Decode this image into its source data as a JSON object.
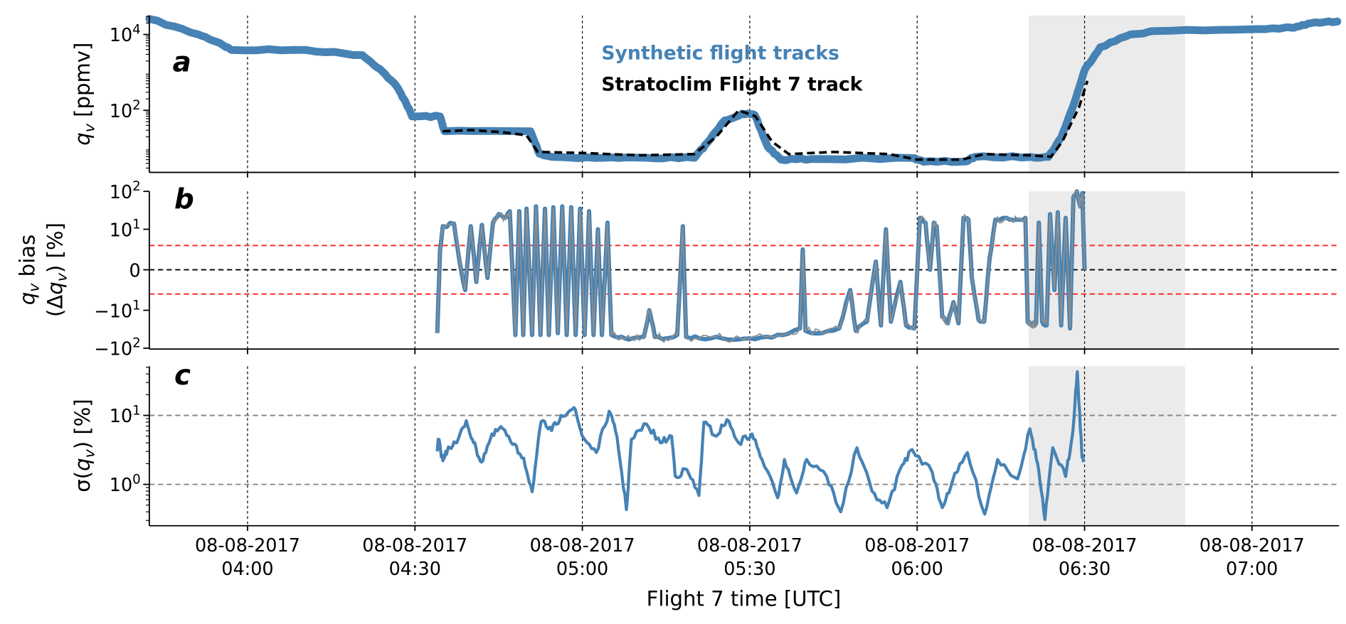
{
  "colors": {
    "synthetic": "#4682b4",
    "synthetic_spread": "#8f8f8f",
    "observed": "#000000",
    "threshold": "#ff2a2a",
    "shade": "#ebebeb",
    "grid": "#888888"
  },
  "chart_data": [
    {
      "panel": "a",
      "type": "line",
      "x_unit": "minutes since 00:00 UTC",
      "xlim": [
        222.4,
        435.6
      ],
      "yscale": "log",
      "ylim": [
        2.3,
        31000
      ],
      "ylabel": {
        "sym": "q",
        "sub": "v",
        "rest": " [ppmv]"
      },
      "yticks": [
        {
          "value": 10000,
          "base": "10",
          "exp": "4"
        },
        {
          "value": 100,
          "base": "10",
          "exp": "2"
        }
      ],
      "shaded_interval": [
        380,
        408
      ],
      "legend": {
        "placement": "top-center",
        "entries": [
          "Synthetic flight tracks",
          "Stratoclim Flight 7 track"
        ]
      },
      "series": [
        {
          "name": "Synthetic flight tracks",
          "style": "thick-solid",
          "points": [
            [
              222.4,
              25700
            ],
            [
              231.2,
              10000
            ],
            [
              235.1,
              5900
            ],
            [
              237.1,
              3900
            ],
            [
              250.5,
              3900
            ],
            [
              260.6,
              2850
            ],
            [
              263.7,
              1230
            ],
            [
              266.7,
              435
            ],
            [
              268.3,
              170
            ],
            [
              269.5,
              69
            ],
            [
              274.5,
              69
            ],
            [
              275.3,
              28
            ],
            [
              290.7,
              28
            ],
            [
              292.3,
              7.2
            ],
            [
              294.6,
              5.9
            ],
            [
              303.9,
              5.6
            ],
            [
              311.6,
              5.6
            ],
            [
              320.1,
              5.6
            ],
            [
              322.4,
              14
            ],
            [
              325.5,
              54
            ],
            [
              328.6,
              81
            ],
            [
              330.9,
              75
            ],
            [
              333.2,
              11
            ],
            [
              335.6,
              5
            ],
            [
              341,
              5.2
            ],
            [
              359.5,
              5.5
            ],
            [
              361.1,
              4.4
            ],
            [
              368.8,
              4.5
            ],
            [
              370.3,
              5.9
            ],
            [
              380.4,
              5.9
            ],
            [
              383.5,
              5.9
            ],
            [
              385.8,
              19
            ],
            [
              388.1,
              150
            ],
            [
              390.1,
              1230
            ],
            [
              392.8,
              4600
            ],
            [
              398.2,
              10000
            ],
            [
              402.8,
              12300
            ],
            [
              419.8,
              13700
            ],
            [
              427.5,
              15000
            ],
            [
              430.6,
              20000
            ],
            [
              435.3,
              22000
            ]
          ]
        },
        {
          "name": "Stratoclim Flight 7 track",
          "style": "dashed",
          "points": [
            [
              275,
              28
            ],
            [
              280,
              30
            ],
            [
              285,
              27
            ],
            [
              290,
              22
            ],
            [
              292,
              8
            ],
            [
              300,
              7.5
            ],
            [
              310,
              6.5
            ],
            [
              320,
              7
            ],
            [
              324,
              20
            ],
            [
              328,
              100
            ],
            [
              331,
              70
            ],
            [
              334,
              15
            ],
            [
              337,
              7
            ],
            [
              345,
              8
            ],
            [
              355,
              7
            ],
            [
              360,
              5
            ],
            [
              368,
              5
            ],
            [
              372,
              7
            ],
            [
              380,
              6.5
            ],
            [
              384,
              6
            ],
            [
              386,
              15
            ],
            [
              389,
              120
            ],
            [
              390.5,
              600
            ]
          ]
        }
      ]
    },
    {
      "panel": "b",
      "type": "line",
      "xlim": [
        222.4,
        435.6
      ],
      "yscale": "symlog",
      "ylim": [
        -100,
        100
      ],
      "ylabel": {
        "line1_sym": "q",
        "line1_sub": "v",
        "line1_rest": " bias",
        "line2_pre": "(Δ",
        "line2_sym": "q",
        "line2_sub": "v",
        "line2_rest": ") [%]"
      },
      "yticks": [
        {
          "value": 100,
          "base": "10",
          "exp": "2"
        },
        {
          "value": 10,
          "base": "10",
          "exp": "1"
        },
        {
          "value": 0,
          "base": "0",
          "exp": ""
        },
        {
          "value": -10,
          "base": "−10",
          "exp": "1"
        },
        {
          "value": -100,
          "base": "−10",
          "exp": "2"
        }
      ],
      "hlines": [
        {
          "value": 0,
          "color": "black"
        },
        {
          "value": 6,
          "color": "red"
        },
        {
          "value": -6,
          "color": "red"
        }
      ],
      "shaded_interval": [
        380,
        408
      ],
      "series": [
        {
          "name": "Synthetic flight tracks bias",
          "points": [
            [
              274,
              -40
            ],
            [
              274.5,
              5
            ],
            [
              275,
              12
            ],
            [
              277,
              14
            ],
            [
              278,
              2
            ],
            [
              279,
              -5
            ],
            [
              280,
              12
            ],
            [
              281,
              -3
            ],
            [
              282,
              13
            ],
            [
              283,
              -2
            ],
            [
              284,
              15
            ],
            [
              285,
              25
            ],
            [
              286,
              20
            ],
            [
              287,
              30
            ],
            [
              288,
              -45
            ],
            [
              288.7,
              30
            ],
            [
              289.4,
              -45
            ],
            [
              290,
              35
            ],
            [
              291,
              -45
            ],
            [
              291.7,
              40
            ],
            [
              292.5,
              -45
            ],
            [
              293.3,
              35
            ],
            [
              294,
              -45
            ],
            [
              294.8,
              38
            ],
            [
              295.6,
              -40
            ],
            [
              296.4,
              40
            ],
            [
              297.2,
              -45
            ],
            [
              298,
              38
            ],
            [
              298.8,
              -45
            ],
            [
              299.6,
              35
            ],
            [
              300.4,
              -45
            ],
            [
              301.2,
              30
            ],
            [
              302,
              -45
            ],
            [
              302.8,
              10
            ],
            [
              303.5,
              -45
            ],
            [
              304.5,
              15
            ],
            [
              305.2,
              -45
            ],
            [
              307,
              -50
            ],
            [
              309,
              -55
            ],
            [
              311,
              -50
            ],
            [
              312,
              -10
            ],
            [
              313,
              -50
            ],
            [
              315,
              -55
            ],
            [
              317,
              -45
            ],
            [
              318,
              12
            ],
            [
              318.6,
              -50
            ],
            [
              321,
              -55
            ],
            [
              324,
              -50
            ],
            [
              327,
              -60
            ],
            [
              330,
              -55
            ],
            [
              333,
              -50
            ],
            [
              336,
              -45
            ],
            [
              339,
              -30
            ],
            [
              339.5,
              5
            ],
            [
              340,
              -35
            ],
            [
              343,
              -40
            ],
            [
              346,
              -30
            ],
            [
              348,
              -5
            ],
            [
              349,
              -35
            ],
            [
              351,
              -20
            ],
            [
              352.6,
              2
            ],
            [
              353.5,
              -25
            ],
            [
              354.4,
              10
            ],
            [
              355.3,
              -20
            ],
            [
              357,
              -3
            ],
            [
              358,
              -25
            ],
            [
              359.5,
              -30
            ],
            [
              360.5,
              20
            ],
            [
              361.5,
              15
            ],
            [
              362.3,
              0
            ],
            [
              363,
              15
            ],
            [
              363.5,
              12
            ],
            [
              364.5,
              -15
            ],
            [
              365.5,
              -22
            ],
            [
              366.5,
              -8
            ],
            [
              367.4,
              -22
            ],
            [
              368.3,
              20
            ],
            [
              369.2,
              18
            ],
            [
              369.8,
              -2
            ],
            [
              371,
              -18
            ],
            [
              372,
              -20
            ],
            [
              373,
              3
            ],
            [
              374,
              18
            ],
            [
              376,
              20
            ],
            [
              378,
              18
            ],
            [
              379.4,
              20
            ],
            [
              379.8,
              -20
            ],
            [
              380.5,
              -25
            ],
            [
              381.3,
              -22
            ],
            [
              381.8,
              15
            ],
            [
              382.4,
              -20
            ],
            [
              383.2,
              -25
            ],
            [
              383.8,
              25
            ],
            [
              384.6,
              -5
            ],
            [
              385.2,
              28
            ],
            [
              385.8,
              -25
            ],
            [
              386.6,
              20
            ],
            [
              387.4,
              -30
            ],
            [
              388,
              70
            ],
            [
              388.6,
              100
            ],
            [
              389.2,
              40
            ],
            [
              389.6,
              90
            ],
            [
              390,
              0
            ]
          ]
        }
      ]
    },
    {
      "panel": "c",
      "type": "line",
      "xlim": [
        222.4,
        435.6
      ],
      "yscale": "log",
      "ylim": [
        0.25,
        52
      ],
      "ylabel": {
        "pre": "σ(",
        "sym": "q",
        "sub": "v",
        "rest": ") [%]"
      },
      "yticks": [
        {
          "value": 10,
          "base": "10",
          "exp": "1"
        },
        {
          "value": 1,
          "base": "10",
          "exp": "0"
        }
      ],
      "hlines": [
        {
          "value": 10
        },
        {
          "value": 1
        }
      ],
      "shaded_interval": [
        380,
        408
      ],
      "series": [
        {
          "name": "Synthetic flight tracks spread",
          "points": [
            [
              274,
              3
            ],
            [
              274.2,
              4.5
            ],
            [
              275,
              2.2
            ],
            [
              276,
              3.5
            ],
            [
              277.5,
              4
            ],
            [
              279.2,
              8.4
            ],
            [
              280.5,
              4
            ],
            [
              281.9,
              2.1
            ],
            [
              283.5,
              4.5
            ],
            [
              285.4,
              6.9
            ],
            [
              287.5,
              3.8
            ],
            [
              289.5,
              2.4
            ],
            [
              291,
              0.78
            ],
            [
              292.6,
              8.1
            ],
            [
              294.5,
              6
            ],
            [
              296.2,
              10
            ],
            [
              298.5,
              13
            ],
            [
              300,
              5
            ],
            [
              302.5,
              2.9
            ],
            [
              304.8,
              11.5
            ],
            [
              306.2,
              5
            ],
            [
              307.9,
              0.43
            ],
            [
              308.8,
              4.5
            ],
            [
              311.5,
              7.5
            ],
            [
              314,
              4
            ],
            [
              316,
              5
            ],
            [
              316.7,
              1.3
            ],
            [
              318.7,
              1.65
            ],
            [
              320.9,
              0.69
            ],
            [
              321.8,
              8
            ],
            [
              324,
              5
            ],
            [
              325.9,
              8.7
            ],
            [
              328,
              4
            ],
            [
              330.4,
              5.4
            ],
            [
              332.2,
              2.3
            ],
            [
              335,
              0.64
            ],
            [
              336.2,
              2.3
            ],
            [
              338.4,
              0.75
            ],
            [
              340.2,
              2.3
            ],
            [
              343.8,
              1.3
            ],
            [
              346.3,
              0.4
            ],
            [
              349.2,
              3.4
            ],
            [
              351.9,
              0.8
            ],
            [
              354.6,
              0.46
            ],
            [
              357.3,
              1.9
            ],
            [
              359.1,
              3.2
            ],
            [
              362.7,
              1.5
            ],
            [
              364.5,
              0.46
            ],
            [
              366.3,
              1.1
            ],
            [
              369,
              2.9
            ],
            [
              372.1,
              0.37
            ],
            [
              374.4,
              2.3
            ],
            [
              378,
              1.2
            ],
            [
              380.2,
              6.4
            ],
            [
              381.6,
              2
            ],
            [
              382.9,
              0.31
            ],
            [
              384.3,
              3.4
            ],
            [
              386.6,
              1.3
            ],
            [
              387.8,
              5
            ],
            [
              388.7,
              43
            ],
            [
              389.5,
              2.9
            ],
            [
              389.8,
              2.1
            ]
          ]
        }
      ]
    }
  ],
  "xaxis": {
    "label": "Flight 7 time [UTC]",
    "ticks": [
      {
        "value": 240,
        "date": "08-08-2017",
        "time": "04:00"
      },
      {
        "value": 270,
        "date": "08-08-2017",
        "time": "04:30"
      },
      {
        "value": 300,
        "date": "08-08-2017",
        "time": "05:00"
      },
      {
        "value": 330,
        "date": "08-08-2017",
        "time": "05:30"
      },
      {
        "value": 360,
        "date": "08-08-2017",
        "time": "06:00"
      },
      {
        "value": 390,
        "date": "08-08-2017",
        "time": "06:30"
      },
      {
        "value": 420,
        "date": "08-08-2017",
        "time": "07:00"
      }
    ]
  },
  "panel_letters": [
    "a",
    "b",
    "c"
  ]
}
